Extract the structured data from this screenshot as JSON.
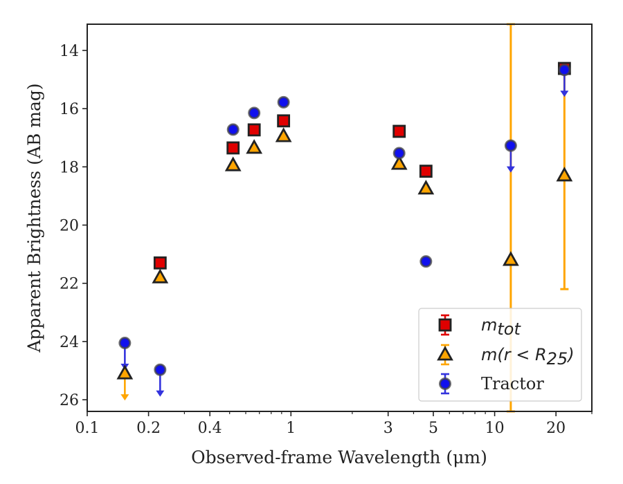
{
  "chart_data": {
    "type": "scatter",
    "title": "",
    "xlabel": "Observed-frame Wavelength (μm)",
    "ylabel": "Apparent Brightness (AB mag)",
    "x_scale": "log",
    "xlim": [
      0.1,
      30
    ],
    "ylim": [
      26.4,
      13.1
    ],
    "y_inverted": true,
    "grid": false,
    "legend_position": "lower-right",
    "x_ticks": [
      0.1,
      0.2,
      0.4,
      1,
      3,
      5,
      10,
      20
    ],
    "x_tick_labels": [
      "0.1",
      "0.2",
      "0.4",
      "1",
      "3",
      "5",
      "10",
      "20"
    ],
    "y_ticks": [
      14,
      16,
      18,
      20,
      22,
      24,
      26
    ],
    "y_tick_labels": [
      "14",
      "16",
      "18",
      "20",
      "22",
      "24",
      "26"
    ],
    "colors": {
      "mtot": "#e00000",
      "mr25": "#ffa500",
      "tractor": "#1010ee",
      "tractor_err": "#3333dd"
    },
    "series": [
      {
        "name": "m_tot",
        "legend_base": "m",
        "legend_sub": "tot",
        "marker": "square",
        "points": [
          {
            "x": 0.228,
            "y": 21.3
          },
          {
            "x": 0.52,
            "y": 17.35
          },
          {
            "x": 0.66,
            "y": 16.73
          },
          {
            "x": 0.92,
            "y": 16.42
          },
          {
            "x": 3.4,
            "y": 16.78
          },
          {
            "x": 4.6,
            "y": 18.15
          },
          {
            "x": 22,
            "y": 14.62
          }
        ]
      },
      {
        "name": "m(r < R_25)",
        "legend_base": "m(r < R",
        "legend_sub": "25",
        "legend_tail": ")",
        "marker": "triangle",
        "points": [
          {
            "x": 0.153,
            "y": 25.1,
            "upper_limit": true
          },
          {
            "x": 0.228,
            "y": 21.8
          },
          {
            "x": 0.52,
            "y": 17.95
          },
          {
            "x": 0.66,
            "y": 17.35
          },
          {
            "x": 0.92,
            "y": 16.95
          },
          {
            "x": 3.4,
            "y": 17.9
          },
          {
            "x": 4.6,
            "y": 18.75
          },
          {
            "x": 12,
            "y": 21.2,
            "err_low": 13.1,
            "err_high": 26.4
          },
          {
            "x": 22,
            "y": 18.3,
            "err_low": 14.5,
            "err_high": 22.2
          }
        ]
      },
      {
        "name": "Tractor",
        "marker": "circle",
        "points": [
          {
            "x": 0.153,
            "y": 24.05,
            "upper_limit": true
          },
          {
            "x": 0.228,
            "y": 24.97,
            "upper_limit": true
          },
          {
            "x": 0.52,
            "y": 16.72
          },
          {
            "x": 0.66,
            "y": 16.15
          },
          {
            "x": 0.92,
            "y": 15.78
          },
          {
            "x": 3.4,
            "y": 17.53
          },
          {
            "x": 4.6,
            "y": 21.25
          },
          {
            "x": 12,
            "y": 17.27,
            "upper_limit": true
          },
          {
            "x": 22,
            "y": 14.67,
            "upper_limit": true
          }
        ]
      }
    ]
  }
}
